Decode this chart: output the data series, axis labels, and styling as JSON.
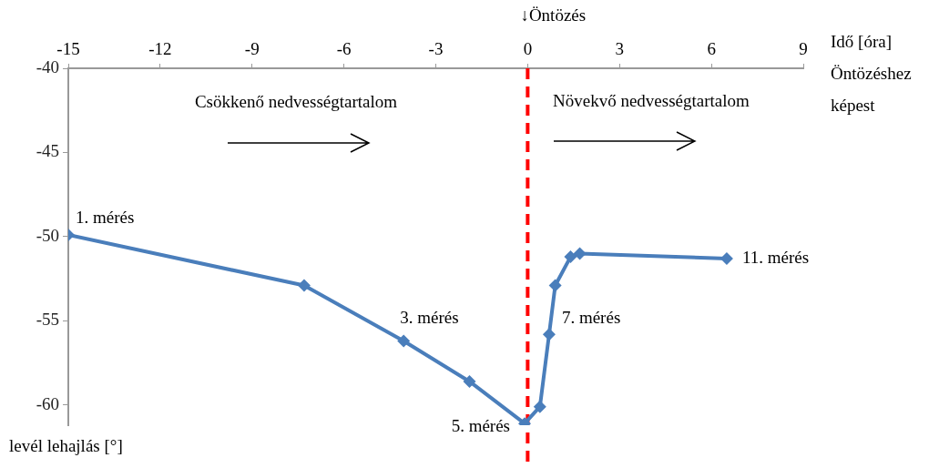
{
  "chart_data": {
    "type": "line",
    "xlabel": "Idő [óra] Öntözéshez képest",
    "ylabel": "levél lehajlás [°]",
    "x": [
      -15,
      -7.3,
      -4.05,
      -1.9,
      -0.1,
      0.4,
      0.7,
      0.9,
      1.4,
      1.7,
      6.5
    ],
    "series": [
      {
        "color": "#4a7ebb",
        "values": [
          -49.9,
          -52.9,
          -56.2,
          -58.6,
          -61.1,
          -60.1,
          -55.8,
          -52.9,
          -51.2,
          -51.0,
          -51.3
        ]
      }
    ],
    "xlim": [
      -15,
      9
    ],
    "xticks": [
      -15,
      -12,
      -9,
      -6,
      -3,
      0,
      3,
      6,
      9
    ],
    "ylim": [
      -61.2,
      -40
    ],
    "yticks": [
      -60,
      -55,
      -50,
      -45,
      -40
    ],
    "marker": "diamond",
    "line_style": "solid",
    "ref_lines": [
      {
        "axis": "x",
        "value": 0,
        "label": "↓Öntözés",
        "color": "#ff0000",
        "line_style": "dashed"
      }
    ],
    "annotations": [
      {
        "text": "1. mérés",
        "x": -15,
        "y": -49.9
      },
      {
        "text": "3. mérés",
        "x": -4.05,
        "y": -56.2
      },
      {
        "text": "5. mérés",
        "x": -0.1,
        "y": -61.1
      },
      {
        "text": "7. mérés",
        "x": 0.7,
        "y": -55.8
      },
      {
        "text": "11. mérés",
        "x": 6.5,
        "y": -51.3
      },
      "Csökkenő nedvességtartalom",
      "Növekvő nedvességtartalom"
    ]
  }
}
